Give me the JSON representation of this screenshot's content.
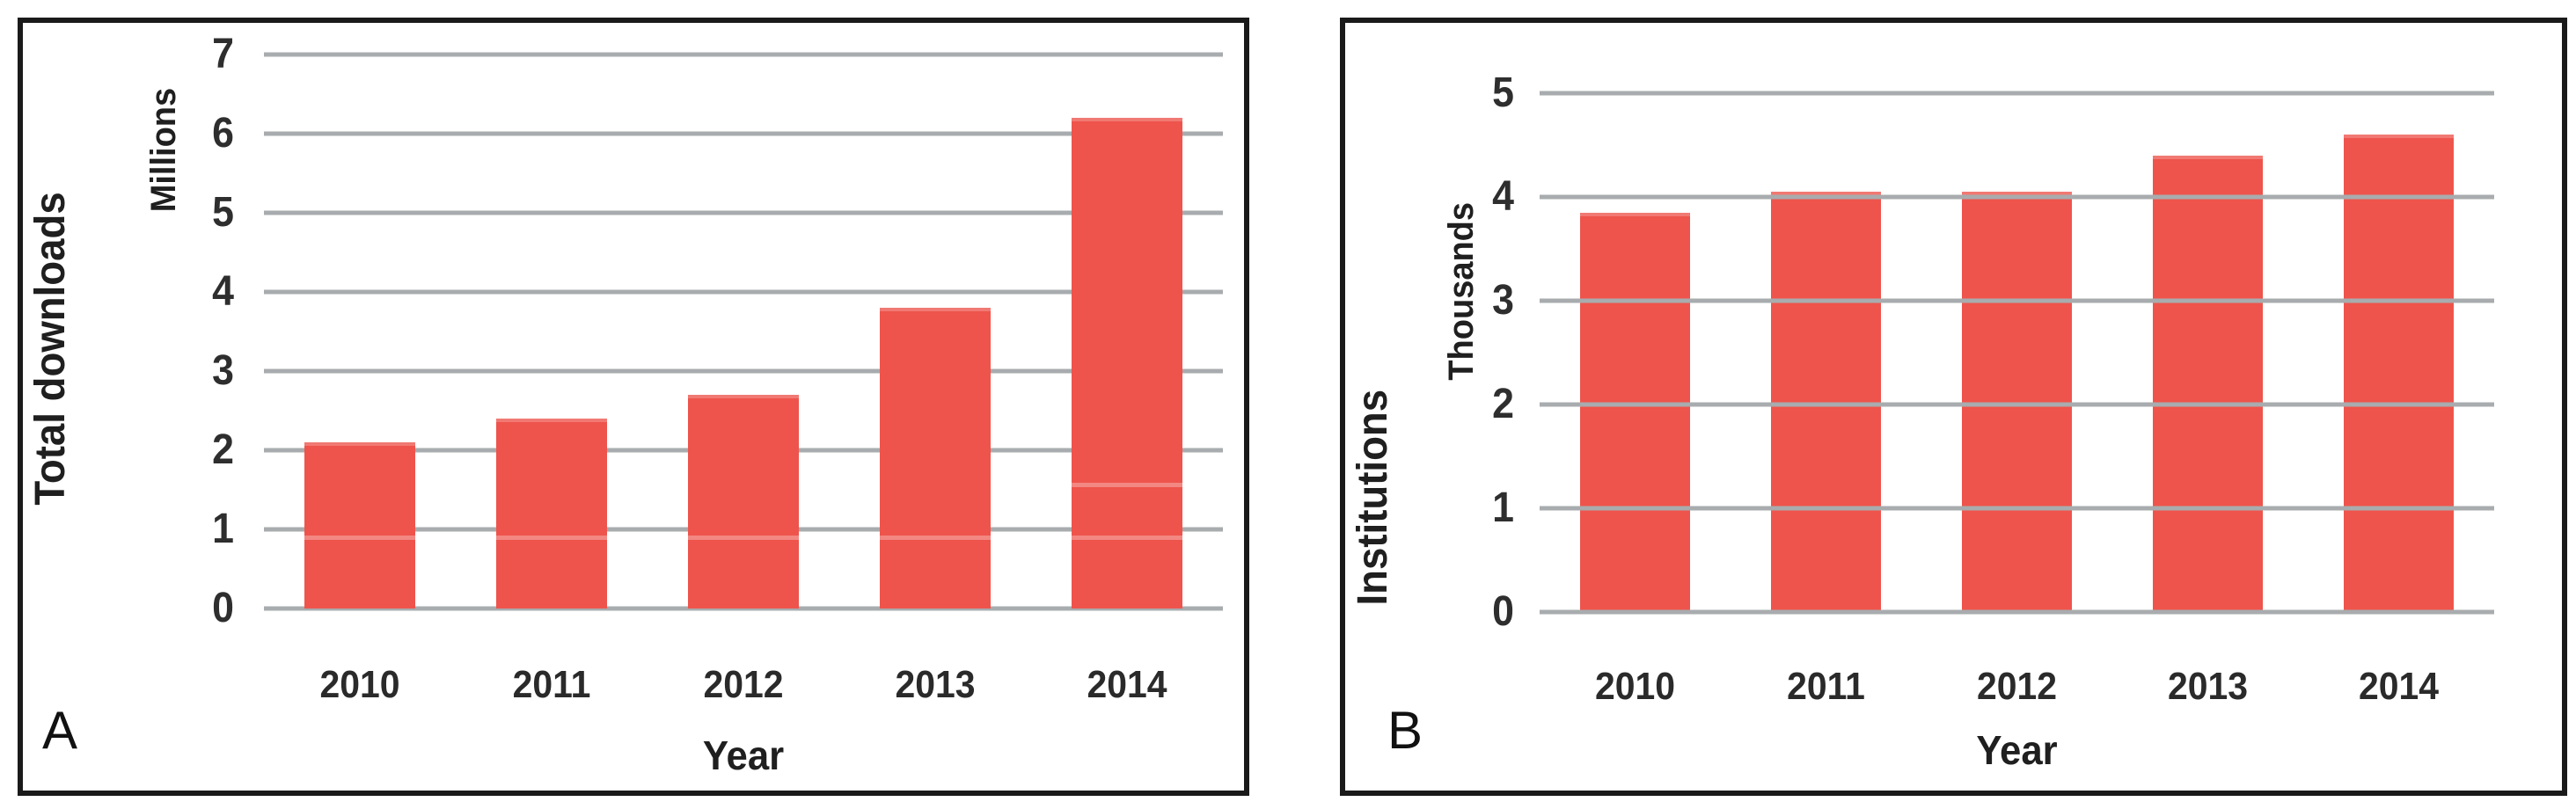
{
  "chart_data": [
    {
      "type": "bar",
      "panel_label": "A",
      "categories": [
        "2010",
        "2011",
        "2012",
        "2013",
        "2014"
      ],
      "values": [
        2.1,
        2.4,
        2.7,
        3.8,
        6.2
      ],
      "xlabel": "Year",
      "ylabel": "Total downloads",
      "y_units_label": "Millions",
      "ylim": [
        0,
        7
      ],
      "y_ticks": [
        0,
        1,
        2,
        3,
        4,
        5,
        6,
        7
      ],
      "grid": true,
      "grid_above_bars": false,
      "legend": null,
      "bar_color": "#ee544c",
      "gridline_color": "#a8acae"
    },
    {
      "type": "bar",
      "panel_label": "B",
      "categories": [
        "2010",
        "2011",
        "2012",
        "2013",
        "2014"
      ],
      "values": [
        3.85,
        4.05,
        4.05,
        4.4,
        4.6
      ],
      "xlabel": "Year",
      "ylabel": "Institutions",
      "y_units_label": "Thousands",
      "ylim": [
        0,
        5
      ],
      "y_ticks": [
        0,
        1,
        2,
        3,
        4,
        5
      ],
      "grid": true,
      "grid_above_bars": true,
      "legend": null,
      "bar_color": "#ee544c",
      "gridline_color": "#a8acae"
    }
  ]
}
